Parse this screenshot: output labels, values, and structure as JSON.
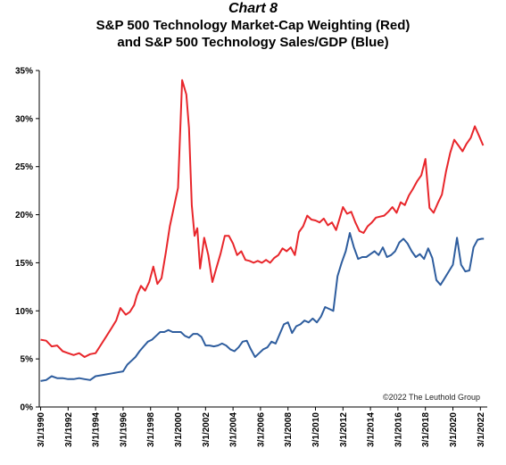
{
  "colors": {
    "red_series": "#e8262b",
    "blue_series": "#2e5d9e",
    "axis": "#000000"
  },
  "chart_data": {
    "type": "line",
    "title": "Chart 8",
    "subtitle_line1": "S&P 500 Technology Market-Cap Weighting (Red)",
    "subtitle_line2": "and S&P 500 Technology Sales/GDP (Blue)",
    "ylim": [
      0,
      35
    ],
    "xlim": [
      1990,
      2022.25
    ],
    "grid": false,
    "y_ticks": [
      0,
      5,
      10,
      15,
      20,
      25,
      30,
      35
    ],
    "y_tick_labels": [
      "0%",
      "5%",
      "10%",
      "15%",
      "20%",
      "25%",
      "30%",
      "35%"
    ],
    "x_ticks": [
      1990,
      1992,
      1994,
      1996,
      1998,
      2000,
      2002,
      2004,
      2006,
      2008,
      2010,
      2012,
      2014,
      2016,
      2018,
      2020,
      2022
    ],
    "x_tick_labels": [
      "3/1/1990",
      "3/1/1992",
      "3/1/1994",
      "3/1/1996",
      "3/1/1998",
      "3/1/2000",
      "3/1/2002",
      "3/1/2004",
      "3/1/2006",
      "3/1/2008",
      "3/1/2010",
      "3/1/2012",
      "3/1/2014",
      "3/1/2016",
      "3/1/2018",
      "3/1/2020",
      "3/1/2022"
    ],
    "annotation": "©2022 The Leuthold Group",
    "series": [
      {
        "color": "#e8262b",
        "x": [
          1990.0,
          1990.4,
          1990.8,
          1991.2,
          1991.6,
          1992.0,
          1992.4,
          1992.8,
          1993.2,
          1993.6,
          1994.0,
          1994.4,
          1994.8,
          1995.2,
          1995.5,
          1995.8,
          1996.2,
          1996.5,
          1996.8,
          1997.0,
          1997.3,
          1997.6,
          1997.9,
          1998.2,
          1998.5,
          1998.8,
          1999.1,
          1999.4,
          1999.7,
          2000.0,
          2000.3,
          2000.6,
          2000.8,
          2001.0,
          2001.2,
          2001.4,
          2001.6,
          2001.9,
          2002.2,
          2002.5,
          2002.8,
          2003.1,
          2003.4,
          2003.7,
          2004.0,
          2004.3,
          2004.6,
          2004.9,
          2005.2,
          2005.5,
          2005.8,
          2006.1,
          2006.4,
          2006.7,
          2007.0,
          2007.3,
          2007.6,
          2007.9,
          2008.2,
          2008.5,
          2008.8,
          2009.1,
          2009.4,
          2009.7,
          2010.0,
          2010.3,
          2010.6,
          2010.9,
          2011.2,
          2011.5,
          2011.8,
          2012.0,
          2012.3,
          2012.6,
          2012.9,
          2013.2,
          2013.5,
          2013.8,
          2014.1,
          2014.4,
          2014.7,
          2015.0,
          2015.3,
          2015.6,
          2015.9,
          2016.2,
          2016.5,
          2016.8,
          2017.1,
          2017.4,
          2017.7,
          2018.0,
          2018.3,
          2018.6,
          2018.9,
          2019.2,
          2019.5,
          2019.8,
          2020.1,
          2020.4,
          2020.7,
          2021.0,
          2021.3,
          2021.6,
          2021.9,
          2022.2
        ],
        "values": [
          7.0,
          6.9,
          6.3,
          6.4,
          5.8,
          5.6,
          5.4,
          5.6,
          5.2,
          5.5,
          5.6,
          6.5,
          7.4,
          8.3,
          9.0,
          10.3,
          9.6,
          9.9,
          10.6,
          11.6,
          12.6,
          12.1,
          13.0,
          14.6,
          12.8,
          13.4,
          16.0,
          18.8,
          20.8,
          22.8,
          34.0,
          32.5,
          29.0,
          21.0,
          17.8,
          18.6,
          14.4,
          17.6,
          15.8,
          13.0,
          14.5,
          16.0,
          17.8,
          17.8,
          17.0,
          15.8,
          16.2,
          15.3,
          15.2,
          15.0,
          15.2,
          15.0,
          15.3,
          15.0,
          15.5,
          15.8,
          16.5,
          16.2,
          16.6,
          15.8,
          18.2,
          18.8,
          19.9,
          19.5,
          19.4,
          19.2,
          19.6,
          18.9,
          19.2,
          18.4,
          19.8,
          20.8,
          20.1,
          20.3,
          19.2,
          18.3,
          18.1,
          18.8,
          19.2,
          19.7,
          19.8,
          19.9,
          20.3,
          20.8,
          20.2,
          21.3,
          21.0,
          22.0,
          22.7,
          23.5,
          24.1,
          25.8,
          20.7,
          20.2,
          21.2,
          22.1,
          24.5,
          26.4,
          27.8,
          27.2,
          26.6,
          27.4,
          28.0,
          29.2,
          28.2,
          27.2
        ]
      },
      {
        "color": "#2e5d9e",
        "x": [
          1990.0,
          1990.4,
          1990.8,
          1991.2,
          1991.6,
          1992.0,
          1992.4,
          1992.8,
          1993.2,
          1993.6,
          1994.0,
          1994.4,
          1994.8,
          1995.2,
          1995.6,
          1996.0,
          1996.3,
          1996.6,
          1996.9,
          1997.2,
          1997.5,
          1997.8,
          1998.1,
          1998.4,
          1998.7,
          1999.0,
          1999.3,
          1999.6,
          1999.9,
          2000.2,
          2000.5,
          2000.8,
          2001.1,
          2001.4,
          2001.7,
          2002.0,
          2002.3,
          2002.6,
          2002.9,
          2003.2,
          2003.5,
          2003.8,
          2004.1,
          2004.4,
          2004.7,
          2005.0,
          2005.3,
          2005.6,
          2005.9,
          2006.2,
          2006.5,
          2006.8,
          2007.1,
          2007.4,
          2007.7,
          2008.0,
          2008.3,
          2008.6,
          2008.9,
          2009.2,
          2009.5,
          2009.8,
          2010.1,
          2010.4,
          2010.7,
          2011.0,
          2011.3,
          2011.6,
          2011.9,
          2012.2,
          2012.5,
          2012.8,
          2013.1,
          2013.4,
          2013.7,
          2014.0,
          2014.3,
          2014.6,
          2014.9,
          2015.2,
          2015.5,
          2015.8,
          2016.1,
          2016.4,
          2016.7,
          2017.0,
          2017.3,
          2017.6,
          2017.9,
          2018.2,
          2018.5,
          2018.8,
          2019.1,
          2019.4,
          2019.7,
          2020.0,
          2020.3,
          2020.6,
          2020.9,
          2021.2,
          2021.5,
          2021.8,
          2022.1,
          2022.25
        ],
        "values": [
          2.7,
          2.8,
          3.2,
          3.0,
          3.0,
          2.9,
          2.9,
          3.0,
          2.9,
          2.8,
          3.2,
          3.3,
          3.4,
          3.5,
          3.6,
          3.7,
          4.4,
          4.8,
          5.2,
          5.8,
          6.3,
          6.8,
          7.0,
          7.4,
          7.8,
          7.8,
          8.0,
          7.8,
          7.8,
          7.8,
          7.4,
          7.2,
          7.6,
          7.6,
          7.3,
          6.4,
          6.4,
          6.3,
          6.4,
          6.6,
          6.4,
          6.0,
          5.8,
          6.2,
          6.8,
          6.9,
          6.0,
          5.2,
          5.6,
          6.0,
          6.2,
          6.8,
          6.6,
          7.6,
          8.6,
          8.8,
          7.7,
          8.4,
          8.6,
          9.0,
          8.8,
          9.2,
          8.8,
          9.4,
          10.4,
          10.2,
          10.0,
          13.6,
          15.0,
          16.2,
          18.1,
          16.6,
          15.4,
          15.6,
          15.6,
          15.9,
          16.2,
          15.8,
          16.6,
          15.6,
          15.8,
          16.2,
          17.1,
          17.5,
          17.0,
          16.2,
          15.6,
          15.9,
          15.4,
          16.5,
          15.5,
          13.2,
          12.7,
          13.4,
          14.1,
          14.8,
          17.6,
          14.8,
          14.1,
          14.2,
          16.6,
          17.4,
          17.5,
          17.5
        ]
      }
    ]
  }
}
